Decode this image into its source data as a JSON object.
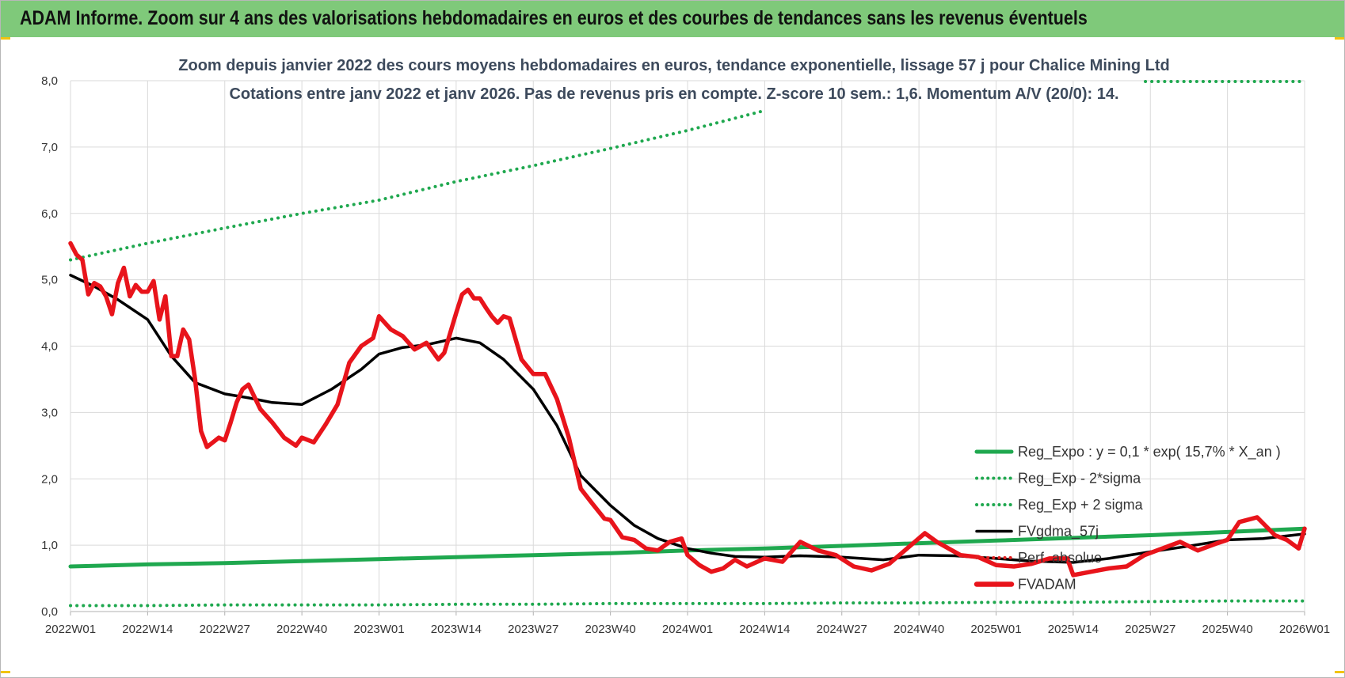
{
  "header": {
    "title": "ADAM Informe. Zoom sur 4 ans des valorisations hebdomadaires en euros et des courbes de tendances sans les revenus éventuels"
  },
  "chart_data": {
    "type": "line",
    "title": "Zoom depuis janvier 2022 des cours moyens hebdomadaires en euros, tendance exponentielle, lissage 57 j pour Chalice Mining Ltd",
    "subtitle": "Cotations entre janv 2022 et janv 2026. Pas de revenus pris en compte. Z-score 10 sem.: 1,6. Momentum A/V (20/0): 14.",
    "xlabel": "",
    "ylabel": "",
    "ylim": [
      0,
      8
    ],
    "yticks": [
      "0,0",
      "1,0",
      "2,0",
      "3,0",
      "4,0",
      "5,0",
      "6,0",
      "7,0",
      "8,0"
    ],
    "xticks": [
      "2022W01",
      "2022W14",
      "2022W27",
      "2022W40",
      "2023W01",
      "2023W14",
      "2023W27",
      "2023W40",
      "2024W01",
      "2024W14",
      "2024W27",
      "2024W40",
      "2025W01",
      "2025W14",
      "2025W27",
      "2025W40",
      "2026W01"
    ],
    "grid": "horizontal and vertical",
    "legend_position": "bottom-right",
    "series": [
      {
        "name": "Reg_Expo : y = 0,1 * exp( 15,7% *  X_an )",
        "style": "solid",
        "color": "#1fa84f",
        "x": [
          "2022W01",
          "2022W14",
          "2022W27",
          "2022W40",
          "2023W01",
          "2023W14",
          "2023W27",
          "2023W40",
          "2024W01",
          "2024W14",
          "2024W27",
          "2024W40",
          "2025W01",
          "2025W14",
          "2025W27",
          "2025W40",
          "2026W01"
        ],
        "values": [
          0.68,
          0.71,
          0.73,
          0.76,
          0.79,
          0.82,
          0.85,
          0.88,
          0.92,
          0.95,
          0.99,
          1.03,
          1.07,
          1.11,
          1.15,
          1.2,
          1.25
        ]
      },
      {
        "name": "Reg_Exp - 2*sigma",
        "style": "dotted",
        "color": "#1fa84f",
        "x": [
          "2022W01",
          "2022W14",
          "2022W27",
          "2022W40",
          "2023W01",
          "2023W14",
          "2023W27",
          "2023W40",
          "2024W01",
          "2024W14",
          "2024W27",
          "2024W40",
          "2025W01",
          "2025W14",
          "2025W27",
          "2025W40",
          "2026W01"
        ],
        "values": [
          0.09,
          0.09,
          0.1,
          0.1,
          0.1,
          0.11,
          0.11,
          0.12,
          0.12,
          0.12,
          0.13,
          0.13,
          0.14,
          0.14,
          0.15,
          0.16,
          0.16
        ]
      },
      {
        "name": "Reg_Exp + 2 sigma",
        "style": "dotted",
        "color": "#1fa84f",
        "x": [
          "2022W01",
          "2022W14",
          "2022W27",
          "2022W40",
          "2023W01",
          "2023W14",
          "2023W27",
          "2023W40",
          "2024W01",
          "2024W14"
        ],
        "values": [
          5.3,
          5.55,
          5.78,
          6.0,
          6.2,
          6.48,
          6.72,
          6.98,
          7.25,
          7.55
        ]
      },
      {
        "name": "FVgdma_57j",
        "style": "solid",
        "color": "#000000",
        "x": [
          "2022W01",
          "2022W05",
          "2022W09",
          "2022W14",
          "2022W18",
          "2022W22",
          "2022W27",
          "2022W31",
          "2022W35",
          "2022W40",
          "2022W45",
          "2022W50",
          "2023W01",
          "2023W05",
          "2023W09",
          "2023W14",
          "2023W18",
          "2023W22",
          "2023W27",
          "2023W31",
          "2023W35",
          "2023W40",
          "2023W44",
          "2023W48",
          "2024W01",
          "2024W05",
          "2024W09",
          "2024W14",
          "2024W20",
          "2024W27",
          "2024W34",
          "2024W40",
          "2024W46",
          "2025W01",
          "2025W07",
          "2025W14",
          "2025W20",
          "2025W27",
          "2025W33",
          "2025W40",
          "2025W46",
          "2026W01"
        ],
        "values": [
          5.07,
          4.9,
          4.7,
          4.4,
          3.85,
          3.45,
          3.28,
          3.22,
          3.15,
          3.12,
          3.35,
          3.65,
          3.88,
          3.98,
          4.02,
          4.12,
          4.05,
          3.8,
          3.35,
          2.8,
          2.05,
          1.6,
          1.3,
          1.1,
          0.95,
          0.88,
          0.83,
          0.82,
          0.84,
          0.82,
          0.78,
          0.85,
          0.84,
          0.8,
          0.76,
          0.74,
          0.8,
          0.9,
          0.98,
          1.08,
          1.1,
          1.17
        ]
      },
      {
        "name": "Perf. absolue",
        "style": "dotted",
        "color": "#e02020",
        "x": [],
        "values": []
      },
      {
        "name": "FVADAM",
        "style": "solid",
        "color": "#e8141b",
        "x": [
          "2022W01",
          "2022W02",
          "2022W03",
          "2022W04",
          "2022W05",
          "2022W06",
          "2022W07",
          "2022W08",
          "2022W09",
          "2022W10",
          "2022W11",
          "2022W12",
          "2022W13",
          "2022W14",
          "2022W15",
          "2022W16",
          "2022W17",
          "2022W18",
          "2022W19",
          "2022W20",
          "2022W21",
          "2022W22",
          "2022W23",
          "2022W24",
          "2022W25",
          "2022W26",
          "2022W27",
          "2022W28",
          "2022W29",
          "2022W30",
          "2022W31",
          "2022W33",
          "2022W35",
          "2022W37",
          "2022W39",
          "2022W40",
          "2022W42",
          "2022W44",
          "2022W46",
          "2022W48",
          "2022W50",
          "2022W52",
          "2023W01",
          "2023W03",
          "2023W05",
          "2023W07",
          "2023W09",
          "2023W11",
          "2023W12",
          "2023W14",
          "2023W15",
          "2023W16",
          "2023W17",
          "2023W18",
          "2023W19",
          "2023W20",
          "2023W21",
          "2023W22",
          "2023W23",
          "2023W25",
          "2023W27",
          "2023W29",
          "2023W31",
          "2023W33",
          "2023W35",
          "2023W37",
          "2023W39",
          "2023W40",
          "2023W42",
          "2023W44",
          "2023W46",
          "2023W48",
          "2023W50",
          "2023W52",
          "2024W01",
          "2024W03",
          "2024W05",
          "2024W07",
          "2024W09",
          "2024W11",
          "2024W14",
          "2024W17",
          "2024W20",
          "2024W23",
          "2024W26",
          "2024W29",
          "2024W32",
          "2024W35",
          "2024W38",
          "2024W41",
          "2024W43",
          "2024W45",
          "2024W47",
          "2024W50",
          "2025W01",
          "2025W04",
          "2025W07",
          "2025W10",
          "2025W13",
          "2025W14",
          "2025W17",
          "2025W20",
          "2025W23",
          "2025W26",
          "2025W29",
          "2025W32",
          "2025W35",
          "2025W38",
          "2025W40",
          "2025W42",
          "2025W45",
          "2025W48",
          "2025W50",
          "2025W52",
          "2026W01"
        ],
        "values": [
          5.55,
          5.38,
          5.3,
          4.78,
          4.95,
          4.9,
          4.75,
          4.48,
          4.95,
          5.18,
          4.75,
          4.92,
          4.82,
          4.82,
          4.98,
          4.4,
          4.75,
          3.85,
          3.85,
          4.25,
          4.1,
          3.5,
          2.72,
          2.48,
          2.55,
          2.62,
          2.58,
          2.85,
          3.15,
          3.35,
          3.42,
          3.05,
          2.85,
          2.62,
          2.5,
          2.62,
          2.55,
          2.82,
          3.12,
          3.75,
          4.0,
          4.12,
          4.45,
          4.25,
          4.15,
          3.95,
          4.05,
          3.8,
          3.9,
          4.5,
          4.78,
          4.85,
          4.72,
          4.72,
          4.58,
          4.45,
          4.35,
          4.45,
          4.42,
          3.8,
          3.58,
          3.58,
          3.2,
          2.62,
          1.85,
          1.62,
          1.4,
          1.38,
          1.12,
          1.08,
          0.95,
          0.92,
          1.05,
          1.1,
          0.85,
          0.7,
          0.6,
          0.65,
          0.78,
          0.68,
          0.8,
          0.75,
          1.05,
          0.92,
          0.85,
          0.68,
          0.62,
          0.72,
          0.95,
          1.18,
          1.05,
          0.95,
          0.85,
          0.82,
          0.7,
          0.68,
          0.72,
          0.8,
          0.8,
          0.55,
          0.6,
          0.65,
          0.68,
          0.85,
          0.95,
          1.05,
          0.92,
          1.02,
          1.08,
          1.35,
          1.42,
          1.15,
          1.08,
          0.95,
          1.25
        ]
      }
    ]
  }
}
